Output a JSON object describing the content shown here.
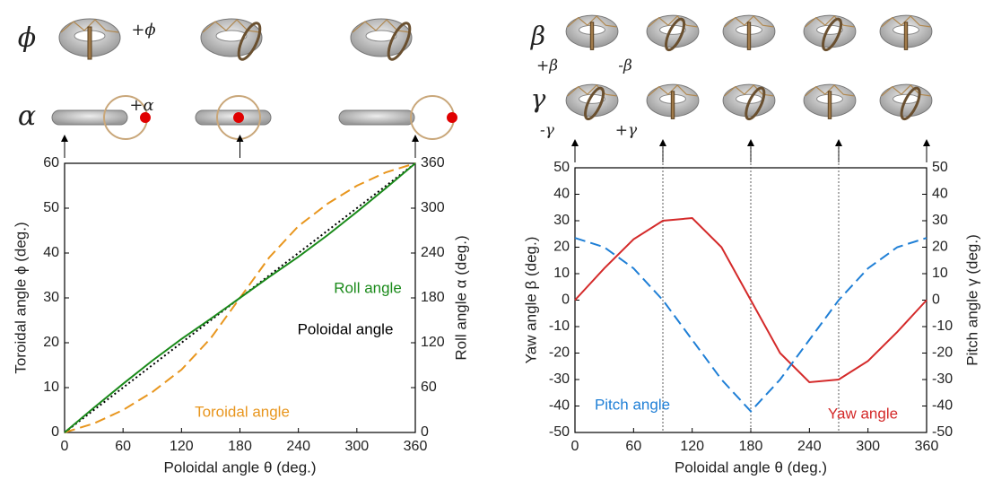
{
  "chart_data": [
    {
      "type": "line",
      "x_label": "Poloidal angle θ (deg.)",
      "y_label": "Toroidal angle ϕ (deg.)",
      "y2_label": "Roll angle α (deg.)",
      "x": [
        0,
        30,
        60,
        90,
        120,
        150,
        180,
        210,
        240,
        270,
        300,
        330,
        360
      ],
      "xlim": [
        0,
        360
      ],
      "xticks": [
        0,
        60,
        120,
        180,
        240,
        300,
        360
      ],
      "ylim": [
        0,
        60
      ],
      "yticks": [
        0,
        10,
        20,
        30,
        40,
        50,
        60
      ],
      "y2lim": [
        0,
        360
      ],
      "y2ticks": [
        0,
        60,
        120,
        180,
        240,
        300,
        360
      ],
      "series": [
        {
          "name": "Toroidal angle",
          "color": "#e8961e",
          "dash": "dashed",
          "values": [
            0,
            2,
            5,
            9,
            14,
            21,
            30,
            39,
            46,
            51,
            55,
            58,
            60
          ]
        },
        {
          "name": "Poloidal angle",
          "color": "#000000",
          "dash": "dotted",
          "axis": "y2",
          "values": [
            0,
            30,
            60,
            90,
            120,
            150,
            180,
            210,
            240,
            270,
            300,
            330,
            360
          ]
        },
        {
          "name": "Roll angle",
          "color": "#1a8a1a",
          "dash": "solid",
          "axis": "y2",
          "values": [
            0,
            33,
            65,
            96,
            125,
            152,
            180,
            208,
            235,
            264,
            295,
            327,
            360
          ]
        }
      ],
      "symbols": [
        "ϕ",
        "+ϕ",
        "α",
        "+α"
      ]
    },
    {
      "type": "line",
      "x_label": "Poloidal angle θ (deg.)",
      "y_label": "Yaw angle β (deg.)",
      "y2_label": "Pitch angle γ (deg.)",
      "x": [
        0,
        30,
        60,
        90,
        120,
        150,
        180,
        210,
        240,
        270,
        300,
        330,
        360
      ],
      "xlim": [
        0,
        360
      ],
      "xticks": [
        0,
        60,
        120,
        180,
        240,
        300,
        360
      ],
      "ylim": [
        -50,
        50
      ],
      "yticks": [
        -50,
        -40,
        -30,
        -20,
        -10,
        0,
        10,
        20,
        30,
        40,
        50
      ],
      "y2lim": [
        -50,
        50
      ],
      "y2ticks": [
        -50,
        -40,
        -30,
        -20,
        -10,
        0,
        10,
        20,
        30,
        40,
        50
      ],
      "vlines": [
        90,
        180,
        270
      ],
      "series": [
        {
          "name": "Yaw angle",
          "color": "#d42a2a",
          "dash": "solid",
          "values": [
            0,
            12,
            23,
            30,
            31,
            20,
            0,
            -20,
            -31,
            -30,
            -23,
            -12,
            0
          ]
        },
        {
          "name": "Pitch angle",
          "color": "#1f7fd6",
          "dash": "dashed",
          "axis": "y2",
          "values": [
            23.5,
            20,
            12,
            0,
            -15,
            -30,
            -42,
            -30,
            -15,
            0,
            12,
            20,
            23.5
          ]
        }
      ],
      "symbols": [
        "β",
        "+β",
        "-β",
        "γ",
        "-γ",
        "+γ"
      ]
    }
  ]
}
